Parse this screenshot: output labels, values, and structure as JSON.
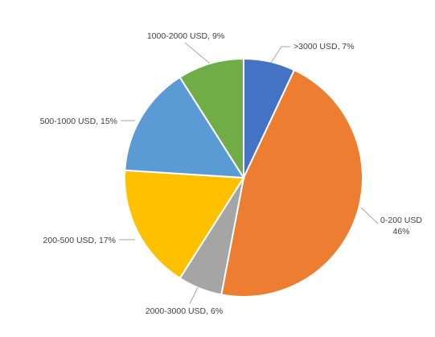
{
  "chart_data": {
    "type": "pie",
    "title": "",
    "start_angle_deg": 0,
    "direction": "clockwise",
    "legend": "none",
    "slices": [
      {
        "label": ">3000 USD",
        "value": 7,
        "display": ">3000 USD, 7%",
        "color": "#4472c4"
      },
      {
        "label": "0-200 USD",
        "value": 46,
        "display_line1": "0-200 USD",
        "display_line2": "46%",
        "color": "#ed7d31"
      },
      {
        "label": "2000-3000 USD",
        "value": 6,
        "display": "2000-3000 USD, 6%",
        "color": "#a5a5a5"
      },
      {
        "label": "200-500 USD",
        "value": 17,
        "display": "200-500 USD, 17%",
        "color": "#ffc000"
      },
      {
        "label": "500-1000 USD",
        "value": 15,
        "display": "500-1000 USD, 15%",
        "color": "#5b9bd5"
      },
      {
        "label": "1000-2000 USD",
        "value": 9,
        "display": "1000-2000 USD, 9%",
        "color": "#70ad47"
      }
    ]
  }
}
